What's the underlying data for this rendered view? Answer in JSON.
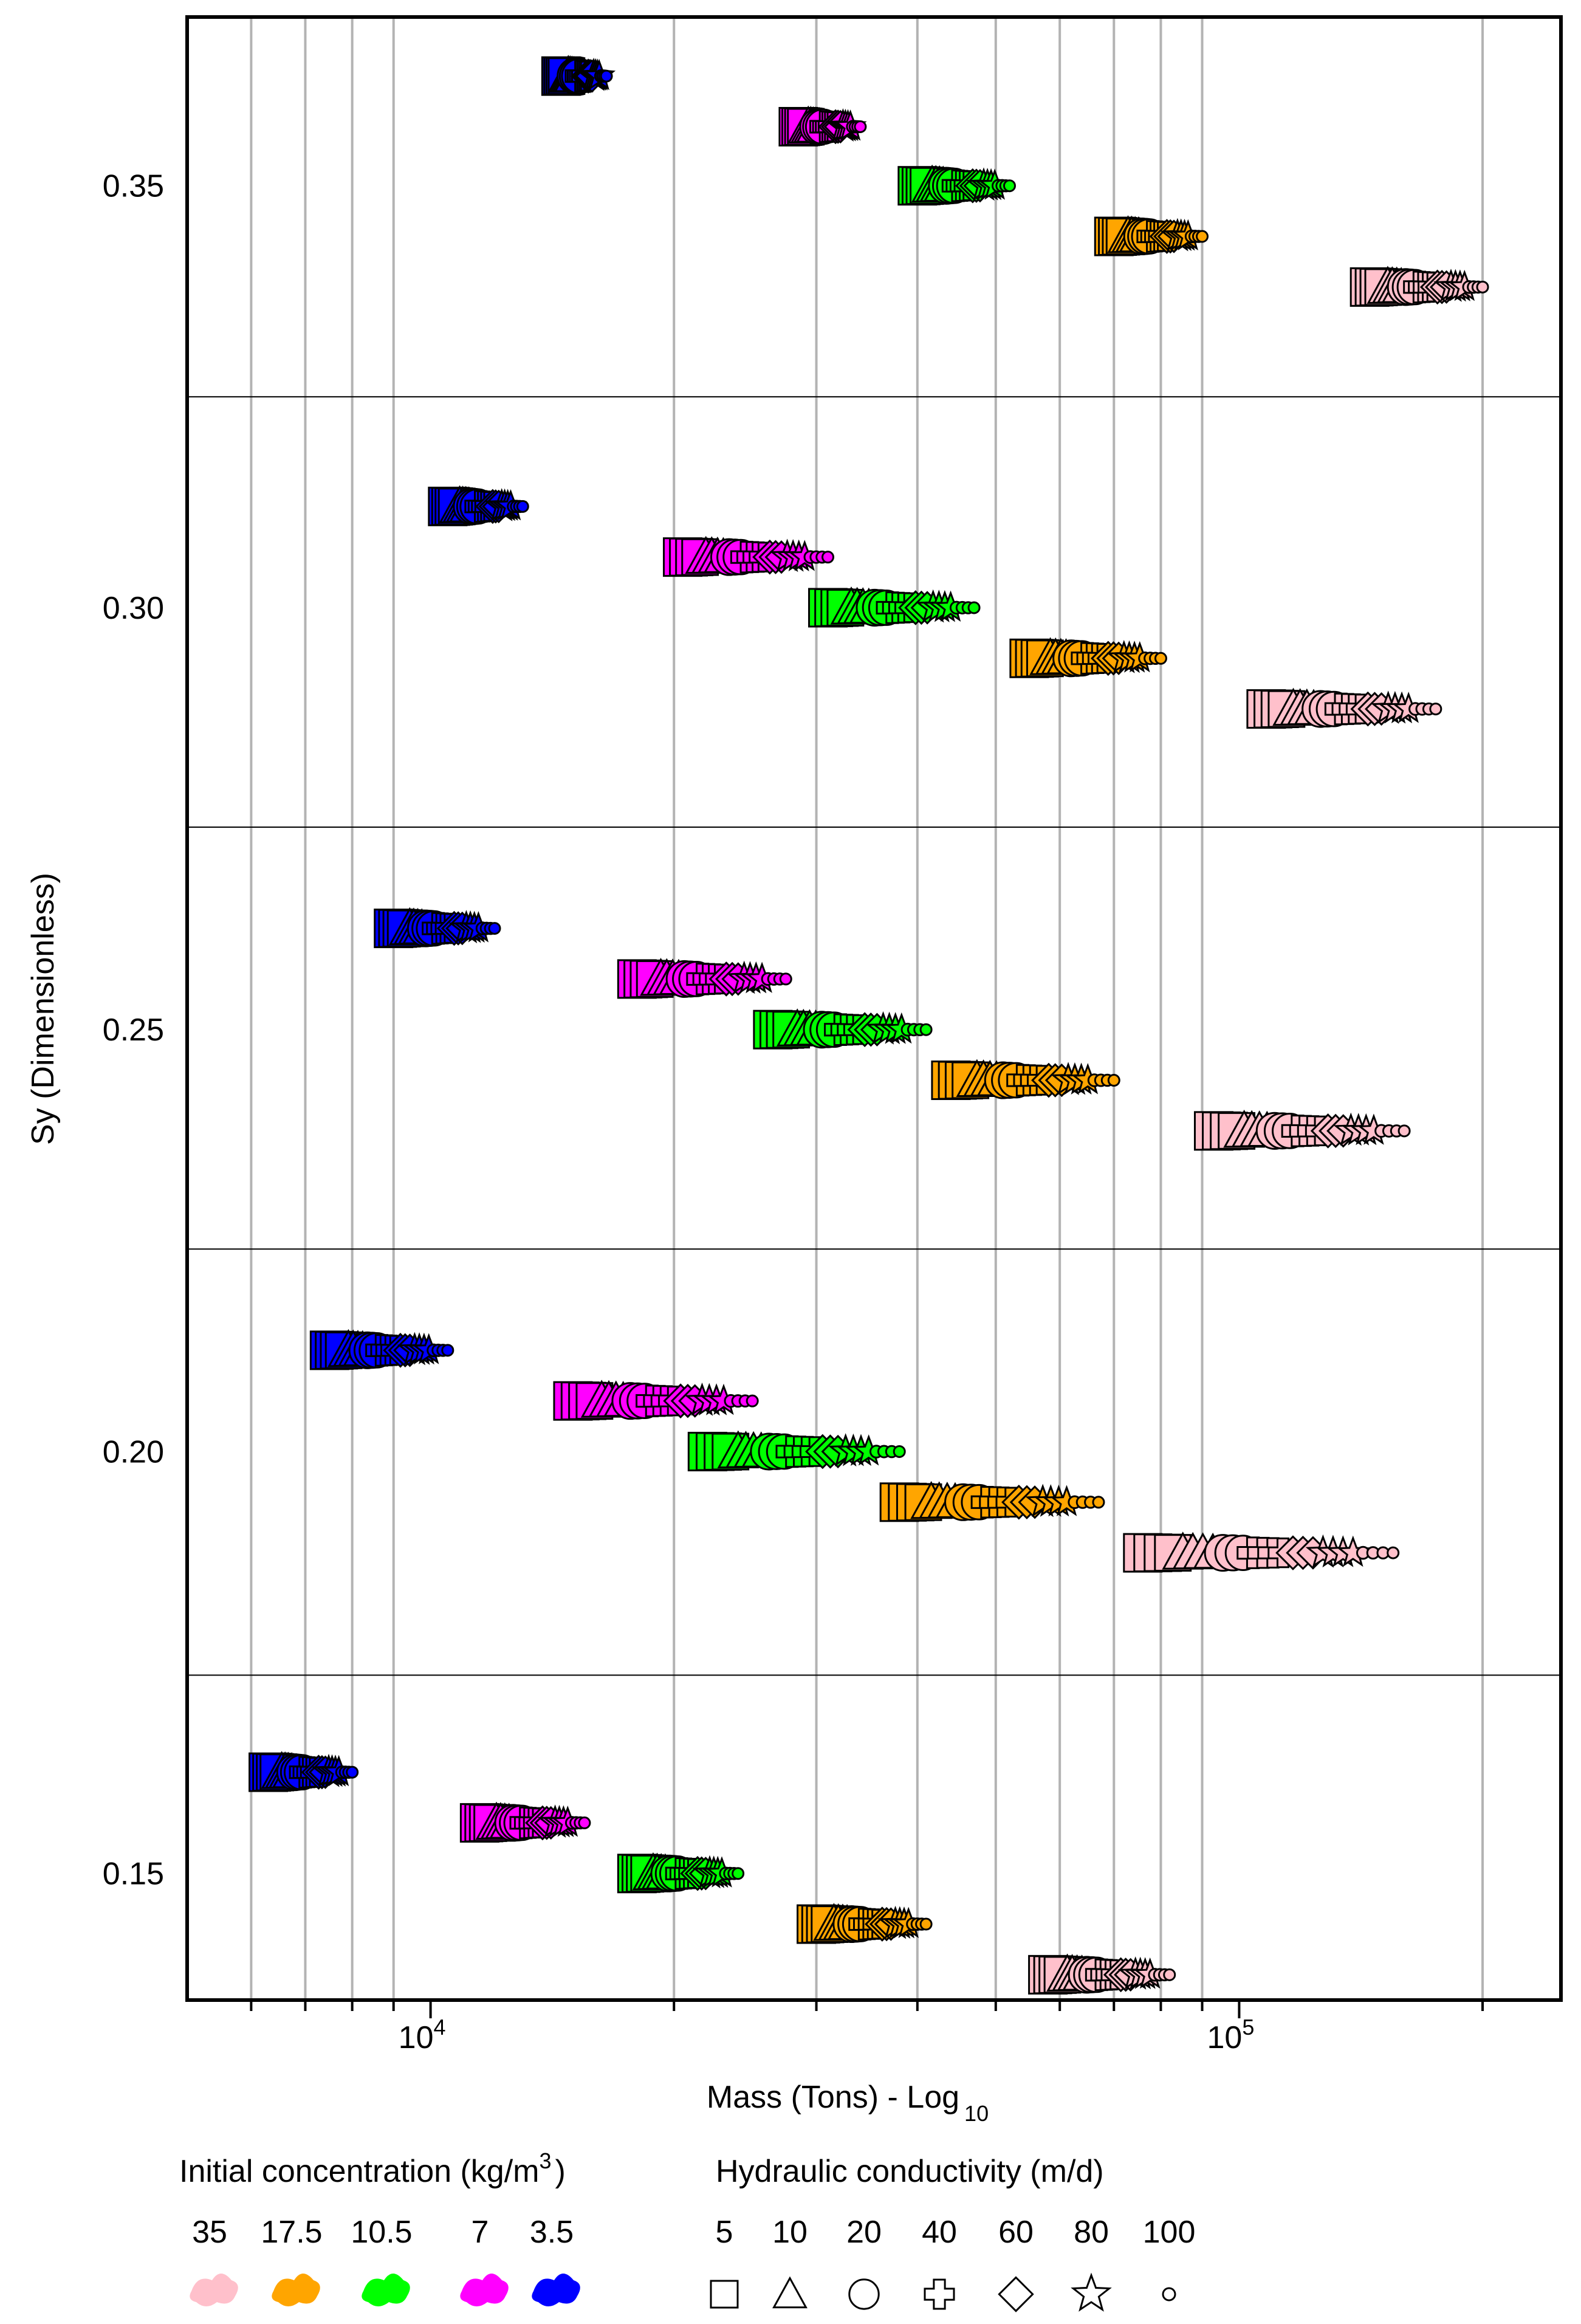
{
  "chart_data": {
    "type": "scatter",
    "title": "",
    "xlabel": "Mass (Tons) - Log",
    "xlabel_sub": "10",
    "ylabel": "Sy (Dimensionless)",
    "x_scale": "log",
    "xlim": [
      5000,
      250000
    ],
    "ylim": [
      0.135,
      0.37
    ],
    "y_ticks": [
      "0.15",
      "0.20",
      "0.25",
      "0.30",
      "0.35"
    ],
    "x_ticks": [
      {
        "value": 10000,
        "base": "10",
        "exp": "4"
      },
      {
        "value": 100000,
        "base": "10",
        "exp": "5"
      }
    ],
    "grid": {
      "x_minor_lines": [
        6000,
        7000,
        8000,
        9000,
        20000,
        30000,
        40000,
        50000,
        60000,
        70000,
        80000,
        90000,
        200000
      ],
      "y_band_separators": [
        0.325,
        0.274,
        0.224,
        0.1735
      ]
    },
    "concentration_legend": {
      "title": "Initial concentration (kg/m",
      "title_sup": "3",
      "title_end": ")",
      "items": [
        {
          "label": "35",
          "color": "#ffc0cb"
        },
        {
          "label": "17.5",
          "color": "#ffa500"
        },
        {
          "label": "10.5",
          "color": "#00ff00"
        },
        {
          "label": "7",
          "color": "#ff00ff"
        },
        {
          "label": "3.5",
          "color": "#0000ff"
        }
      ]
    },
    "conductivity_legend": {
      "title": "Hydraulic conductivity (m/d)",
      "items": [
        {
          "label": "5",
          "marker": "square"
        },
        {
          "label": "10",
          "marker": "triangle"
        },
        {
          "label": "20",
          "marker": "circle"
        },
        {
          "label": "40",
          "marker": "plus"
        },
        {
          "label": "60",
          "marker": "diamond"
        },
        {
          "label": "80",
          "marker": "star"
        },
        {
          "label": "100",
          "marker": "small-circle"
        }
      ]
    },
    "series": [
      {
        "concentration": "3.5",
        "color": "#0000ff",
        "clusters": [
          {
            "sy": 0.363,
            "x_min": 14500,
            "x_max": 16500
          },
          {
            "sy": 0.312,
            "x_min": 10500,
            "x_max": 13000
          },
          {
            "sy": 0.262,
            "x_min": 9000,
            "x_max": 12000
          },
          {
            "sy": 0.212,
            "x_min": 7500,
            "x_max": 10500
          },
          {
            "sy": 0.162,
            "x_min": 6300,
            "x_max": 8000
          }
        ]
      },
      {
        "concentration": "7",
        "color": "#ff00ff",
        "clusters": [
          {
            "sy": 0.357,
            "x_min": 28500,
            "x_max": 34000
          },
          {
            "sy": 0.306,
            "x_min": 20500,
            "x_max": 31000
          },
          {
            "sy": 0.256,
            "x_min": 18000,
            "x_max": 27500
          },
          {
            "sy": 0.206,
            "x_min": 15000,
            "x_max": 25000
          },
          {
            "sy": 0.156,
            "x_min": 11500,
            "x_max": 15500
          }
        ]
      },
      {
        "concentration": "10.5",
        "color": "#00ff00",
        "clusters": [
          {
            "sy": 0.35,
            "x_min": 40000,
            "x_max": 52000
          },
          {
            "sy": 0.3,
            "x_min": 31000,
            "x_max": 47000
          },
          {
            "sy": 0.25,
            "x_min": 26500,
            "x_max": 41000
          },
          {
            "sy": 0.2,
            "x_min": 22000,
            "x_max": 38000
          },
          {
            "sy": 0.15,
            "x_min": 18000,
            "x_max": 24000
          }
        ]
      },
      {
        "concentration": "17.5",
        "color": "#ffa500",
        "clusters": [
          {
            "sy": 0.344,
            "x_min": 70000,
            "x_max": 90000
          },
          {
            "sy": 0.294,
            "x_min": 55000,
            "x_max": 80000
          },
          {
            "sy": 0.244,
            "x_min": 44000,
            "x_max": 70000
          },
          {
            "sy": 0.194,
            "x_min": 38000,
            "x_max": 67000
          },
          {
            "sy": 0.144,
            "x_min": 30000,
            "x_max": 41000
          }
        ]
      },
      {
        "concentration": "35",
        "color": "#ffc0cb",
        "clusters": [
          {
            "sy": 0.338,
            "x_min": 145000,
            "x_max": 200000
          },
          {
            "sy": 0.288,
            "x_min": 108000,
            "x_max": 175000
          },
          {
            "sy": 0.238,
            "x_min": 93000,
            "x_max": 160000
          },
          {
            "sy": 0.188,
            "x_min": 76000,
            "x_max": 155000
          },
          {
            "sy": 0.138,
            "x_min": 58000,
            "x_max": 82000
          }
        ]
      }
    ]
  }
}
